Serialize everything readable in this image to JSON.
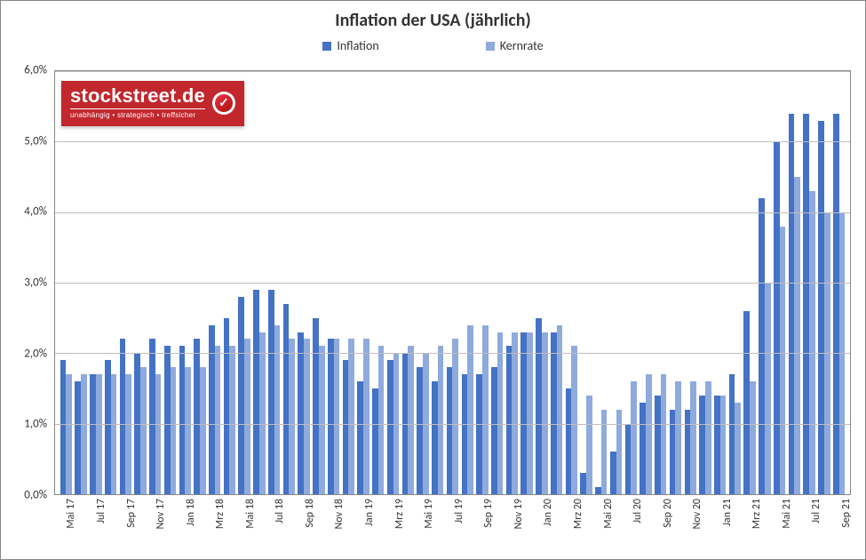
{
  "chart": {
    "type": "bar",
    "title": "Inflation der USA (jährlich)",
    "title_fontsize": 20,
    "title_fontweight": "bold",
    "title_color": "#333333",
    "background_color": "#ffffff",
    "border_color": "#888888",
    "grid_color": "#bfbfbf",
    "font_family": "Calibri, Arial, sans-serif",
    "ylim": [
      0,
      6
    ],
    "ytick_step": 1,
    "y_format": "percent_comma_1",
    "y_labels": [
      "0,0%",
      "1,0%",
      "2,0%",
      "3,0%",
      "4,0%",
      "5,0%",
      "6,0%"
    ],
    "label_fontsize": 13,
    "xlabel_fontsize": 12,
    "xlabel_rotation": -90,
    "bar_width_ratio": 0.4,
    "legend": {
      "items": [
        {
          "label": "Inflation",
          "color": "#4472c4"
        },
        {
          "label": "Kernrate",
          "color": "#8faadc"
        }
      ],
      "position": "top-center",
      "fontsize": 14
    },
    "logo": {
      "main": "stockstreet.de",
      "sub": "unabhängig • strategisch • treffsicher",
      "bg_color": "#c1272d",
      "text_color": "#ffffff"
    },
    "categories_all": [
      "Mai 17",
      "Jun 17",
      "Jul 17",
      "Aug 17",
      "Sep 17",
      "Okt 17",
      "Nov 17",
      "Dez 17",
      "Jan 18",
      "Feb 18",
      "Mrz 18",
      "Apr 18",
      "Mai 18",
      "Jun 18",
      "Jul 18",
      "Aug 18",
      "Sep 18",
      "Okt 18",
      "Nov 18",
      "Dez 18",
      "Jan 19",
      "Feb 19",
      "Mrz 19",
      "Apr 19",
      "Mai 19",
      "Jun 19",
      "Jul 19",
      "Aug 19",
      "Sep 19",
      "Okt 19",
      "Nov 19",
      "Dez 19",
      "Jan 20",
      "Feb 20",
      "Mrz 20",
      "Apr 20",
      "Mai 20",
      "Jun 20",
      "Jul 20",
      "Aug 20",
      "Sep 20",
      "Okt 20",
      "Nov 20",
      "Dez 20",
      "Jan 21",
      "Feb 21",
      "Mrz 21",
      "Apr 21",
      "Mai 21",
      "Jun 21",
      "Jul 21",
      "Aug 21",
      "Sep 21"
    ],
    "xlabels_visible": [
      "Mai 17",
      "Jul 17",
      "Sep 17",
      "Nov 17",
      "Jan 18",
      "Mrz 18",
      "Mai 18",
      "Jul 18",
      "Sep 18",
      "Nov 18",
      "Jan 19",
      "Mrz 19",
      "Mai 19",
      "Jul 19",
      "Sep 19",
      "Nov 19",
      "Jan 20",
      "Mrz 20",
      "Mai 20",
      "Jul 20",
      "Sep 20",
      "Nov 20",
      "Jan 21",
      "Mrz 21",
      "Mai 21",
      "Jul 21",
      "Sep 21"
    ],
    "series": [
      {
        "name": "Inflation",
        "color": "#4472c4",
        "values": [
          1.9,
          1.6,
          1.7,
          1.9,
          2.2,
          2.0,
          2.2,
          2.1,
          2.1,
          2.2,
          2.4,
          2.5,
          2.8,
          2.9,
          2.9,
          2.7,
          2.3,
          2.5,
          2.2,
          1.9,
          1.6,
          1.5,
          1.9,
          2.0,
          1.8,
          1.6,
          1.8,
          1.7,
          1.7,
          1.8,
          2.1,
          2.3,
          2.5,
          2.3,
          1.5,
          0.3,
          0.1,
          0.6,
          1.0,
          1.3,
          1.4,
          1.2,
          1.2,
          1.4,
          1.4,
          1.7,
          2.6,
          4.2,
          5.0,
          5.4,
          5.4,
          5.3,
          5.4
        ]
      },
      {
        "name": "Kernrate",
        "color": "#8faadc",
        "values": [
          1.7,
          1.7,
          1.7,
          1.7,
          1.7,
          1.8,
          1.7,
          1.8,
          1.8,
          1.8,
          2.1,
          2.1,
          2.2,
          2.3,
          2.4,
          2.2,
          2.2,
          2.1,
          2.2,
          2.2,
          2.2,
          2.1,
          2.0,
          2.1,
          2.0,
          2.1,
          2.2,
          2.4,
          2.4,
          2.3,
          2.3,
          2.3,
          2.3,
          2.4,
          2.1,
          1.4,
          1.2,
          1.2,
          1.6,
          1.7,
          1.7,
          1.6,
          1.6,
          1.6,
          1.4,
          1.3,
          1.6,
          3.0,
          3.8,
          4.5,
          4.3,
          4.0,
          4.0
        ]
      }
    ]
  }
}
